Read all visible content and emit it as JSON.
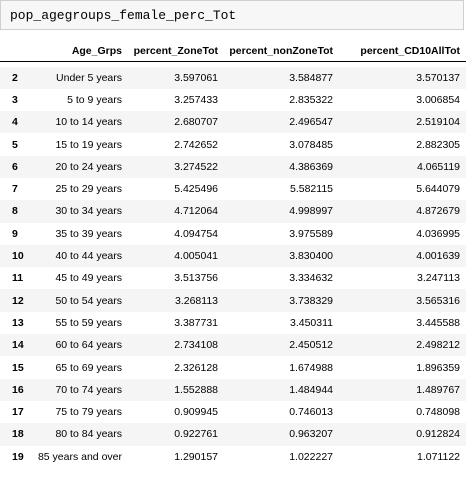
{
  "code_cell": {
    "text": "pop_agegroups_female_perc_Tot"
  },
  "table": {
    "columns": [
      "",
      "Age_Grps",
      "percent_ZoneTot",
      "percent_nonZoneTot",
      "percent_CD10AllTot"
    ],
    "rows": [
      [
        "2",
        "Under 5 years",
        "3.597061",
        "3.584877",
        "3.570137"
      ],
      [
        "3",
        "5 to 9 years",
        "3.257433",
        "2.835322",
        "3.006854"
      ],
      [
        "4",
        "10 to 14 years",
        "2.680707",
        "2.496547",
        "2.519104"
      ],
      [
        "5",
        "15 to 19 years",
        "2.742652",
        "3.078485",
        "2.882305"
      ],
      [
        "6",
        "20 to 24 years",
        "3.274522",
        "4.386369",
        "4.065119"
      ],
      [
        "7",
        "25 to 29 years",
        "5.425496",
        "5.582115",
        "5.644079"
      ],
      [
        "8",
        "30 to 34 years",
        "4.712064",
        "4.998997",
        "4.872679"
      ],
      [
        "9",
        "35 to 39 years",
        "4.094754",
        "3.975589",
        "4.036995"
      ],
      [
        "10",
        "40 to 44 years",
        "4.005041",
        "3.830400",
        "4.001639"
      ],
      [
        "11",
        "45 to 49 years",
        "3.513756",
        "3.334632",
        "3.247113"
      ],
      [
        "12",
        "50 to 54 years",
        "3.268113",
        "3.738329",
        "3.565316"
      ],
      [
        "13",
        "55 to 59 years",
        "3.387731",
        "3.450311",
        "3.445588"
      ],
      [
        "14",
        "60 to 64 years",
        "2.734108",
        "2.450512",
        "2.498212"
      ],
      [
        "15",
        "65 to 69 years",
        "2.326128",
        "1.674988",
        "1.896359"
      ],
      [
        "16",
        "70 to 74 years",
        "1.552888",
        "1.484944",
        "1.489767"
      ],
      [
        "17",
        "75 to 79 years",
        "0.909945",
        "0.746013",
        "0.748098"
      ],
      [
        "18",
        "80 to 84 years",
        "0.922761",
        "0.963207",
        "0.912824"
      ],
      [
        "19",
        "85 years and over",
        "1.290157",
        "1.022227",
        "1.071122"
      ]
    ]
  }
}
